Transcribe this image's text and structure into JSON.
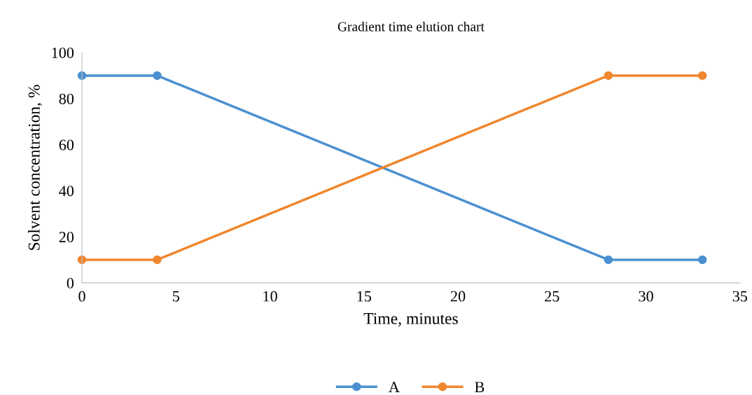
{
  "chart_data": {
    "type": "line",
    "title": "Gradient time elution chart",
    "xlabel": "Time, minutes",
    "ylabel": "Solvent concentration, %",
    "x": [
      0,
      4,
      28,
      33
    ],
    "series": [
      {
        "name": "A",
        "color": "#4a90d0",
        "values": [
          90,
          90,
          10,
          10
        ]
      },
      {
        "name": "B",
        "color": "#f0862e",
        "values": [
          10,
          10,
          90,
          90
        ]
      }
    ],
    "xlim": [
      0,
      35
    ],
    "xticks": [
      0,
      5,
      10,
      15,
      20,
      25,
      30,
      35
    ],
    "ylim": [
      0,
      100
    ],
    "yticks": [
      0,
      20,
      40,
      60,
      80,
      100
    ],
    "grid": false,
    "legend": "bottom",
    "marker": "circle",
    "line_style": "solid"
  }
}
